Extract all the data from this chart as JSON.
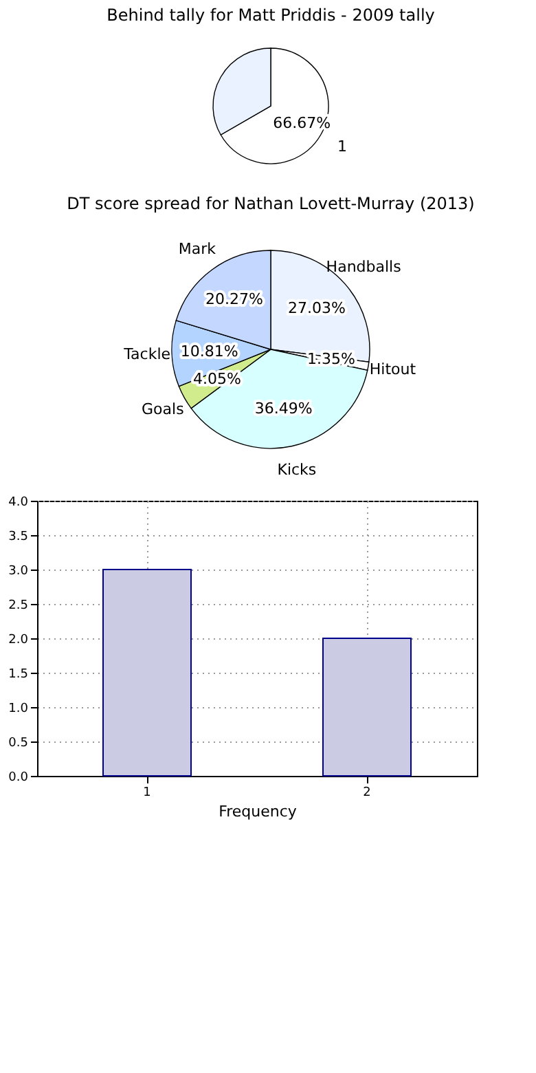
{
  "chart_data": [
    {
      "type": "pie",
      "title": "Behind tally for Matt Priddis - 2009 tally",
      "categories": [
        "1",
        null
      ],
      "values": [
        66.67,
        33.33
      ],
      "value_labels": [
        "66.67%",
        null
      ],
      "colors": [
        "#ffffff",
        "#eaf1ff"
      ]
    },
    {
      "type": "pie",
      "title": "DT score spread for Nathan Lovett-Murray (2013)",
      "categories": [
        "Handballs",
        "Hitout",
        "Kicks",
        "Goals",
        "Tackle",
        "Mark"
      ],
      "values": [
        27.03,
        1.35,
        36.49,
        4.05,
        10.81,
        20.27
      ],
      "value_labels": [
        "27.03%",
        "1.35%",
        "36.49%",
        "4.05%",
        "10.81%",
        "20.27%"
      ],
      "colors": [
        "#eaf1ff",
        "#ffffff",
        "#d8ffff",
        "#d0ec8c",
        "#b3d4ff",
        "#c4d8ff"
      ]
    },
    {
      "type": "bar",
      "categories": [
        "1",
        "2"
      ],
      "values": [
        3,
        2
      ],
      "color": "#cbcbe3",
      "xlabel": "Frequency",
      "ylim": [
        0,
        4
      ],
      "yticks": [
        {
          "value": 0,
          "label": "0.0"
        },
        {
          "value": 0.5,
          "label": "0.5"
        },
        {
          "value": 1,
          "label": "1.0"
        },
        {
          "value": 1.5,
          "label": "1.5"
        },
        {
          "value": 2,
          "label": "2.0"
        },
        {
          "value": 2.5,
          "label": "2.5"
        },
        {
          "value": 3,
          "label": "3.0"
        },
        {
          "value": 3.5,
          "label": "3.5"
        },
        {
          "value": 4,
          "label": "4.0"
        }
      ],
      "grid": true
    }
  ]
}
